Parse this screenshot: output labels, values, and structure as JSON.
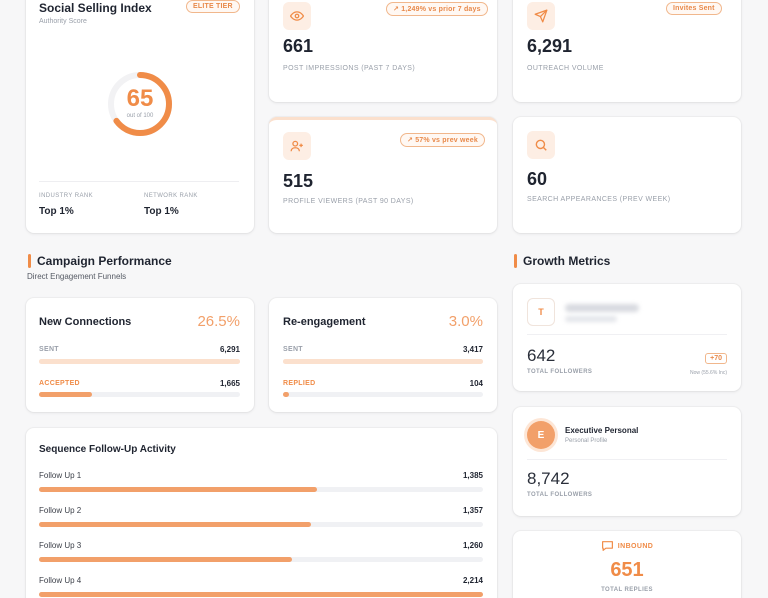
{
  "colors": {
    "accent": "#f08c48",
    "accent_light": "#fbe8dc",
    "text": "#1f2430",
    "muted": "#9aa0aa"
  },
  "ssi": {
    "title": "Social Selling Index",
    "subtitle": "Authority Score",
    "tier_badge": "ELITE TIER",
    "score": "65",
    "score_of": "out of 100",
    "score_fraction": 0.65,
    "industry_rank_label": "INDUSTRY RANK",
    "industry_rank_value": "Top 1%",
    "network_rank_label": "NETWORK RANK",
    "network_rank_value": "Top 1%"
  },
  "stats": {
    "impressions": {
      "icon": "eye-icon",
      "badge": "↗ 1,249% vs prior 7 days",
      "value": "661",
      "label": "POST IMPRESSIONS (PAST 7 DAYS)"
    },
    "outreach": {
      "icon": "send-icon",
      "badge": "Invites Sent",
      "value": "6,291",
      "label": "OUTREACH VOLUME"
    },
    "viewers": {
      "icon": "user-plus-icon",
      "badge": "↗ 57% vs prev week",
      "value": "515",
      "label": "PROFILE VIEWERS (PAST 90 DAYS)"
    },
    "search": {
      "icon": "search-icon",
      "value": "60",
      "label": "SEARCH APPEARANCES (PREV WEEK)"
    }
  },
  "campaign": {
    "title": "Campaign Performance",
    "subtitle": "Direct Engagement Funnels",
    "new_connections": {
      "title": "New Connections",
      "rate": "26.5%",
      "sent_label": "SENT",
      "sent_value": "6,291",
      "sent_fraction": 1.0,
      "accepted_label": "ACCEPTED",
      "accepted_value": "1,665",
      "accepted_fraction": 0.265
    },
    "reengagement": {
      "title": "Re-engagement",
      "rate": "3.0%",
      "sent_label": "SENT",
      "sent_value": "3,417",
      "sent_fraction": 1.0,
      "replied_label": "REPLIED",
      "replied_value": "104",
      "replied_fraction": 0.03
    }
  },
  "sequence": {
    "title": "Sequence Follow-Up Activity",
    "items": [
      {
        "label": "Follow Up 1",
        "value": "1,385",
        "fraction": 0.625
      },
      {
        "label": "Follow Up 2",
        "value": "1,357",
        "fraction": 0.613
      },
      {
        "label": "Follow Up 3",
        "value": "1,260",
        "fraction": 0.569
      },
      {
        "label": "Follow Up 4",
        "value": "2,214",
        "fraction": 1.0
      }
    ]
  },
  "growth": {
    "title": "Growth Metrics",
    "company": {
      "avatar": "T",
      "followers": "642",
      "followers_label": "TOTAL FOLLOWERS",
      "delta": "+70",
      "delta_note": "Now (55.6% Inc)"
    },
    "personal": {
      "avatar": "E",
      "name": "Executive Personal",
      "type": "Personal Profile",
      "followers": "8,742",
      "followers_label": "TOTAL FOLLOWERS"
    },
    "inbound": {
      "icon": "chat-icon",
      "label": "INBOUND",
      "value": "651",
      "value_label": "TOTAL REPLIES"
    }
  }
}
